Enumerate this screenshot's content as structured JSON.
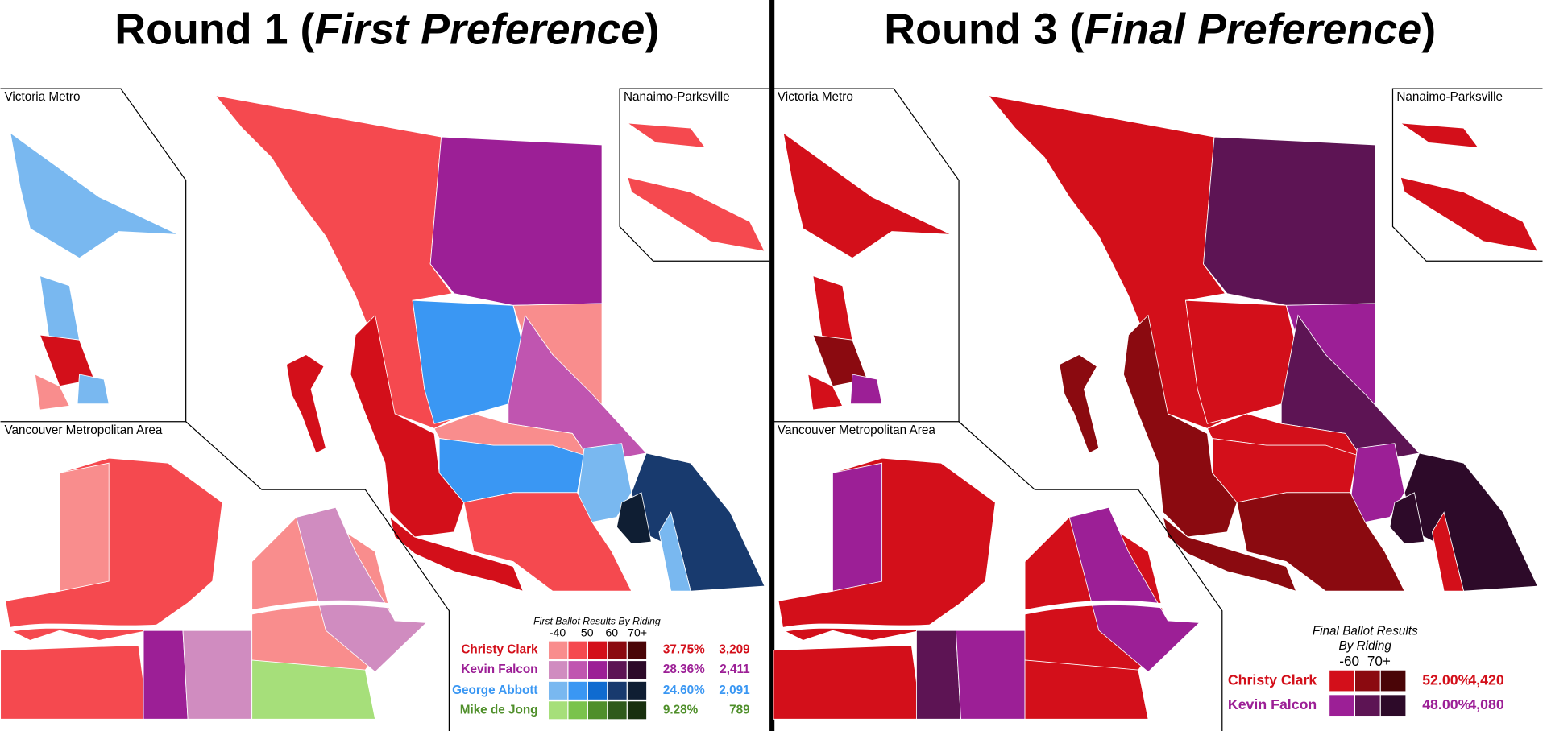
{
  "panels": [
    {
      "title": {
        "prefix": "Round 1 (",
        "italic": "First Preference",
        "suffix": ")"
      },
      "insets": [
        "Victoria Metro",
        "Nanaimo-Parksville",
        "Vancouver Metropolitan Area"
      ],
      "legend": {
        "title": [
          "First Ballot Results By Riding"
        ],
        "bins": [
          "-40",
          "50",
          "60",
          "70+"
        ],
        "rows": [
          {
            "name": "Christy Clark",
            "percent": "37.75%",
            "votes": "3,209",
            "color": "#d30f1a",
            "shades": [
              "#f98d8d",
              "#f5494f",
              "#d30f1a",
              "#8b0a10",
              "#4a0507"
            ]
          },
          {
            "name": "Kevin Falcon",
            "percent": "28.36%",
            "votes": "2,411",
            "color": "#9c1f96",
            "shades": [
              "#d08cc0",
              "#c055b0",
              "#9c1f96",
              "#5d1454",
              "#2d0a29"
            ]
          },
          {
            "name": "George Abbott",
            "percent": "24.60%",
            "votes": "2,091",
            "color": "#3a97f3",
            "shades": [
              "#79b8f0",
              "#3a97f3",
              "#0f6bd0",
              "#183a6e",
              "#0f1e33"
            ]
          },
          {
            "name": "Mike de Jong",
            "percent": "9.28%",
            "votes": "789",
            "color": "#4f8f2a",
            "shades": [
              "#a6df7a",
              "#7ac34c",
              "#4f8f2a",
              "#2f5a1b",
              "#18300e"
            ]
          }
        ]
      }
    },
    {
      "title": {
        "prefix": "Round 3 (",
        "italic": "Final Preference",
        "suffix": ")"
      },
      "insets": [
        "Victoria Metro",
        "Nanaimo-Parksville",
        "Vancouver Metropolitan Area"
      ],
      "legend": {
        "title": [
          "Final Ballot Results",
          "By Riding"
        ],
        "bins": [
          "-60",
          "70+"
        ],
        "rows": [
          {
            "name": "Christy Clark",
            "percent": "52.00%",
            "votes": "4,420",
            "color": "#d30f1a",
            "shades": [
              "#d30f1a",
              "#8b0a10",
              "#4a0507"
            ]
          },
          {
            "name": "Kevin Falcon",
            "percent": "48.00%",
            "votes": "4,080",
            "color": "#9c1f96",
            "shades": [
              "#9c1f96",
              "#5d1454",
              "#2d0a29"
            ]
          }
        ]
      }
    }
  ]
}
